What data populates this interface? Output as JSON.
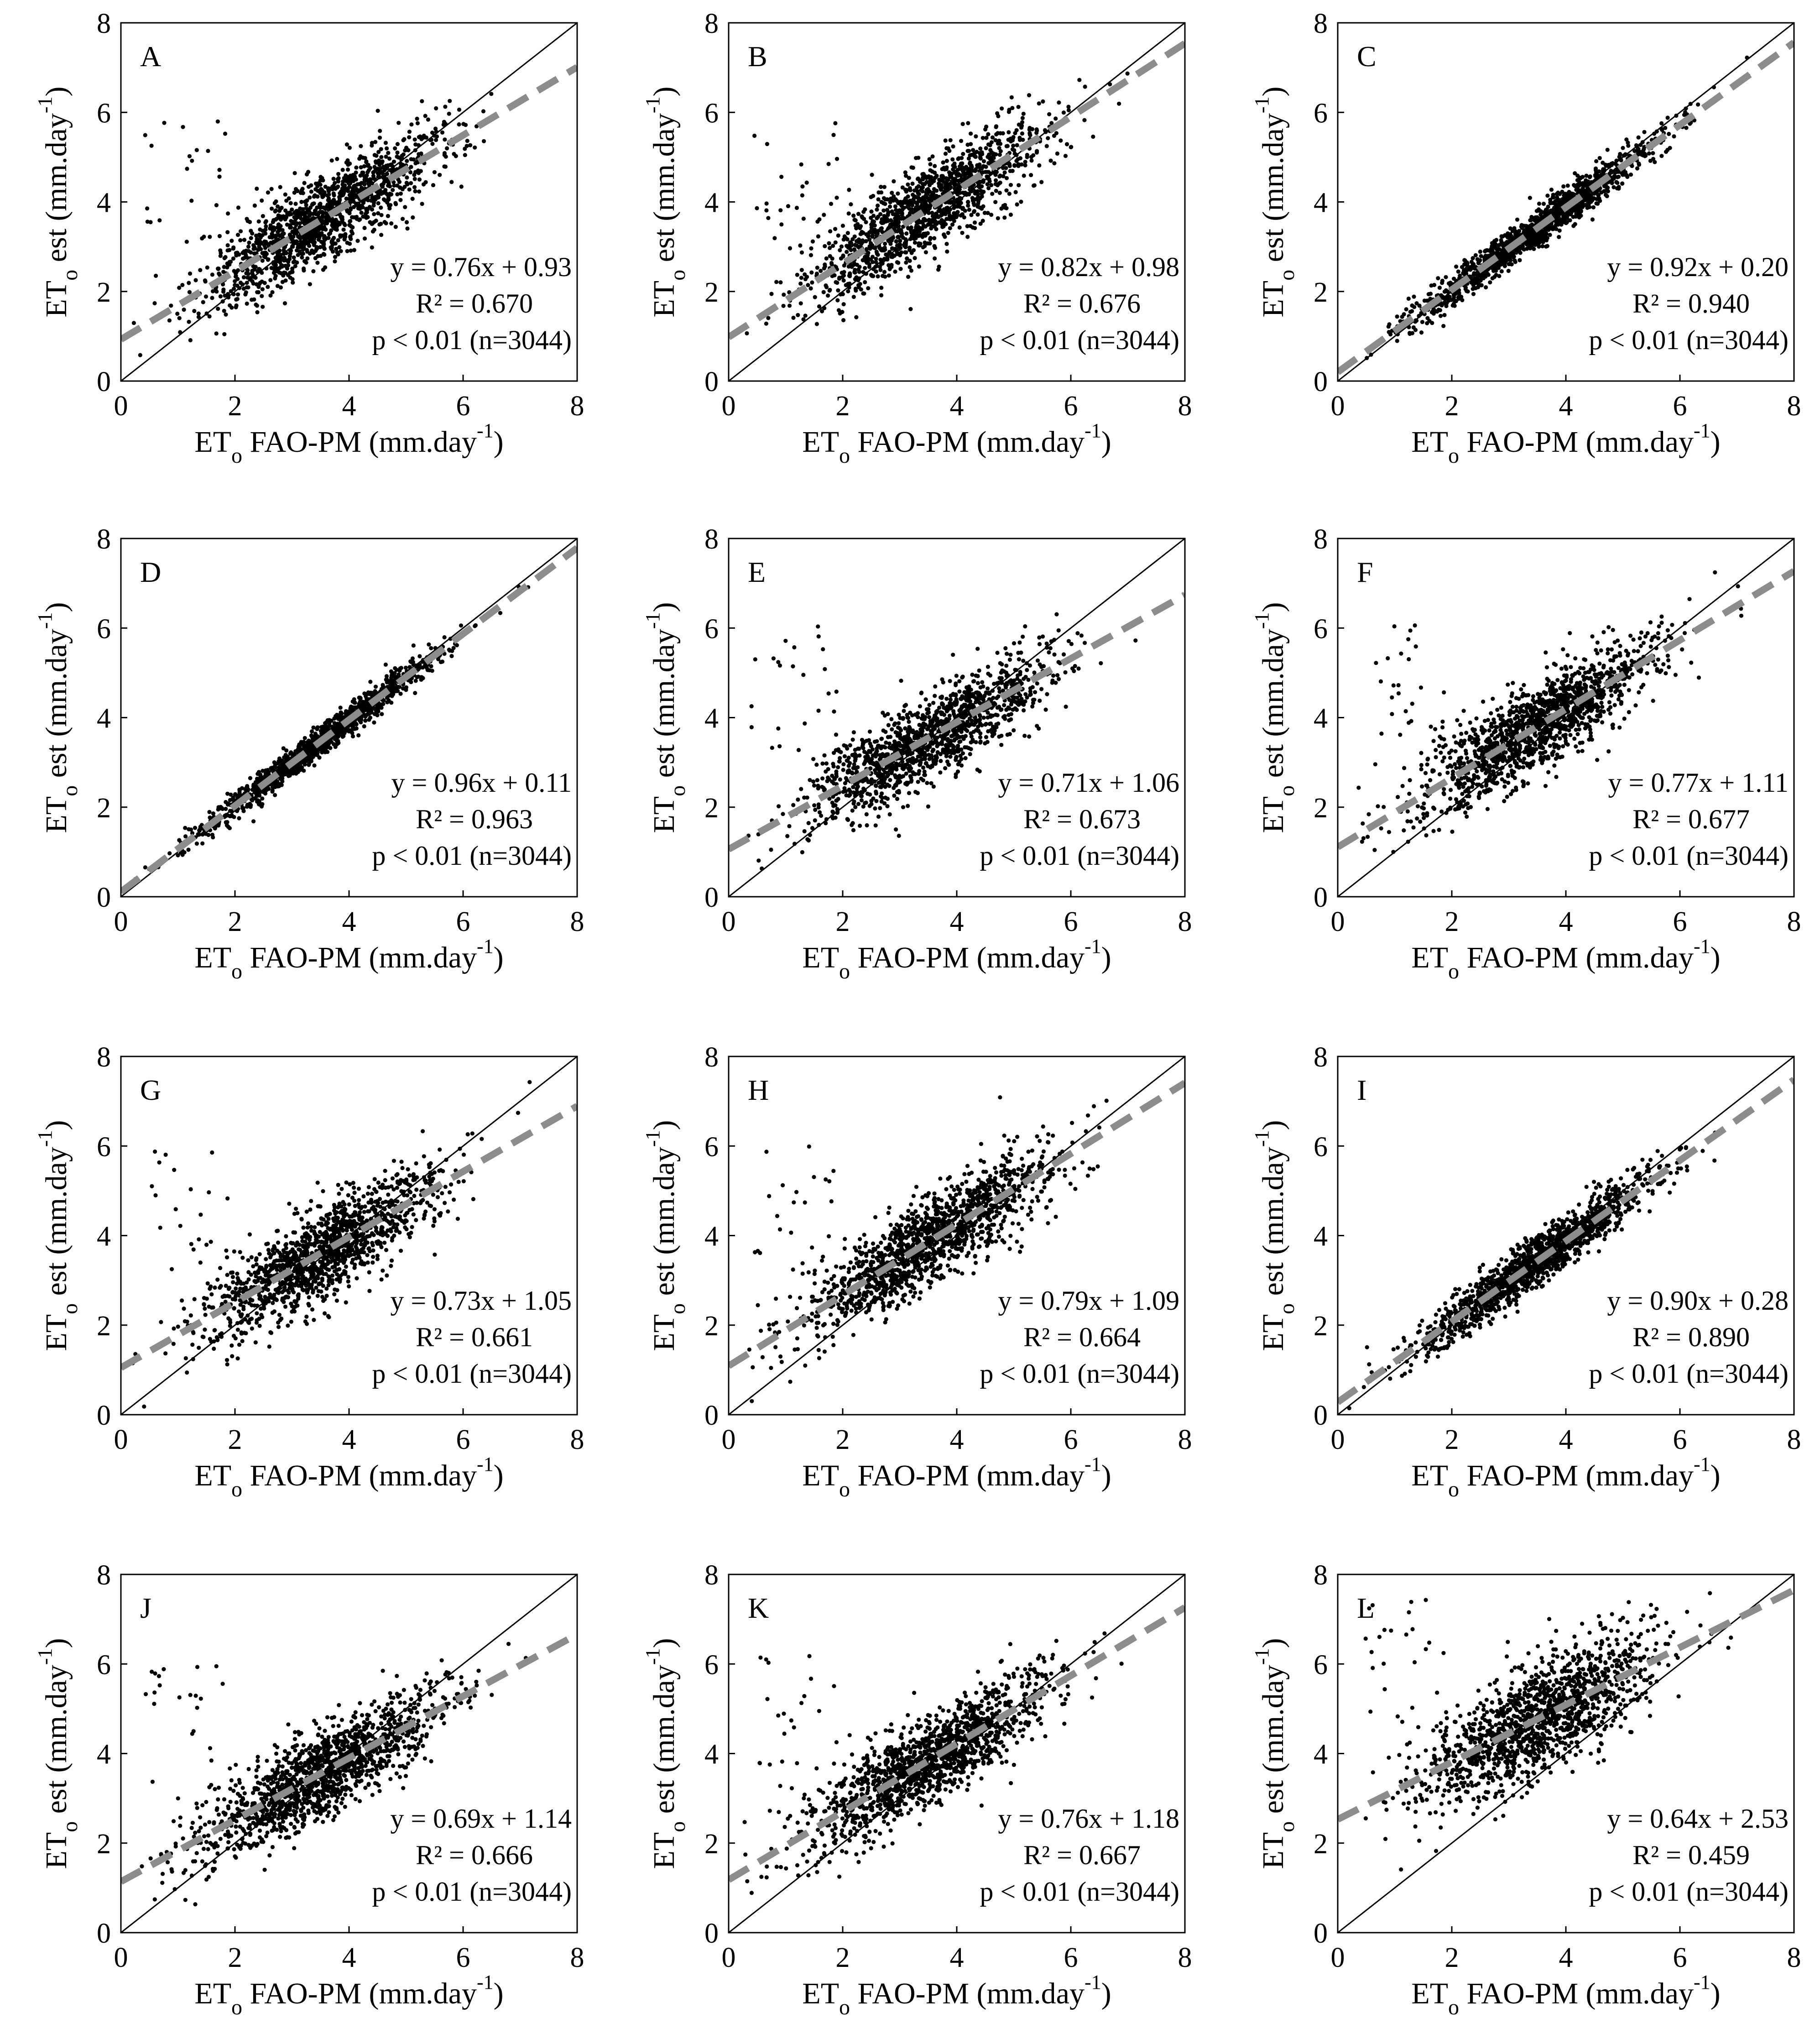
{
  "chart_data": {
    "type": "scatter",
    "layout": {
      "rows": 4,
      "cols": 3
    },
    "x_axis": {
      "main": "ET",
      "sub": "o",
      "rest": " FAO-PM (mm.day",
      "sup": "-1",
      "close": ")",
      "range": [
        0,
        8
      ],
      "ticks": [
        0,
        2,
        4,
        6,
        8
      ]
    },
    "y_axis": {
      "main": "ET",
      "sub": "o",
      "rest": " est (mm.day",
      "sup": "-1",
      "close": ")",
      "range": [
        0,
        8
      ],
      "ticks": [
        0,
        2,
        4,
        6,
        8
      ]
    },
    "reference_line": "1:1",
    "fit_line": {
      "style": "dashed",
      "color": "#8c8c8c"
    },
    "point_color": "#000000",
    "panels": [
      {
        "letter": "A",
        "slope": 0.76,
        "intercept": 0.93,
        "eq": "y = 0.76x + 0.93",
        "r2": "R² = 0.670",
        "p": "p < 0.01 (n=3044)"
      },
      {
        "letter": "B",
        "slope": 0.82,
        "intercept": 0.98,
        "eq": "y = 0.82x + 0.98",
        "r2": "R² = 0.676",
        "p": "p < 0.01 (n=3044)"
      },
      {
        "letter": "C",
        "slope": 0.92,
        "intercept": 0.2,
        "eq": "y = 0.92x + 0.20",
        "r2": "R² = 0.940",
        "p": "p < 0.01 (n=3044)"
      },
      {
        "letter": "D",
        "slope": 0.96,
        "intercept": 0.11,
        "eq": "y = 0.96x + 0.11",
        "r2": "R² = 0.963",
        "p": "p < 0.01 (n=3044)"
      },
      {
        "letter": "E",
        "slope": 0.71,
        "intercept": 1.06,
        "eq": "y = 0.71x + 1.06",
        "r2": "R² = 0.673",
        "p": "p < 0.01 (n=3044)"
      },
      {
        "letter": "F",
        "slope": 0.77,
        "intercept": 1.11,
        "eq": "y = 0.77x + 1.11",
        "r2": "R² = 0.677",
        "p": "p < 0.01 (n=3044)"
      },
      {
        "letter": "G",
        "slope": 0.73,
        "intercept": 1.05,
        "eq": "y = 0.73x + 1.05",
        "r2": "R² = 0.661",
        "p": "p < 0.01 (n=3044)"
      },
      {
        "letter": "H",
        "slope": 0.79,
        "intercept": 1.09,
        "eq": "y = 0.79x + 1.09",
        "r2": "R² = 0.664",
        "p": "p < 0.01 (n=3044)"
      },
      {
        "letter": "I",
        "slope": 0.9,
        "intercept": 0.28,
        "eq": "y = 0.90x + 0.28",
        "r2": "R² = 0.890",
        "p": "p < 0.01 (n=3044)"
      },
      {
        "letter": "J",
        "slope": 0.69,
        "intercept": 1.14,
        "eq": "y = 0.69x + 1.14",
        "r2": "R² = 0.666",
        "p": "p < 0.01 (n=3044)"
      },
      {
        "letter": "K",
        "slope": 0.76,
        "intercept": 1.18,
        "eq": "y = 0.76x + 1.18",
        "r2": "R² = 0.667",
        "p": "p < 0.01 (n=3044)"
      },
      {
        "letter": "L",
        "slope": 0.64,
        "intercept": 2.53,
        "eq": "y = 0.64x + 2.53",
        "r2": "R² = 0.459",
        "p": "p < 0.01 (n=3044)"
      }
    ]
  }
}
